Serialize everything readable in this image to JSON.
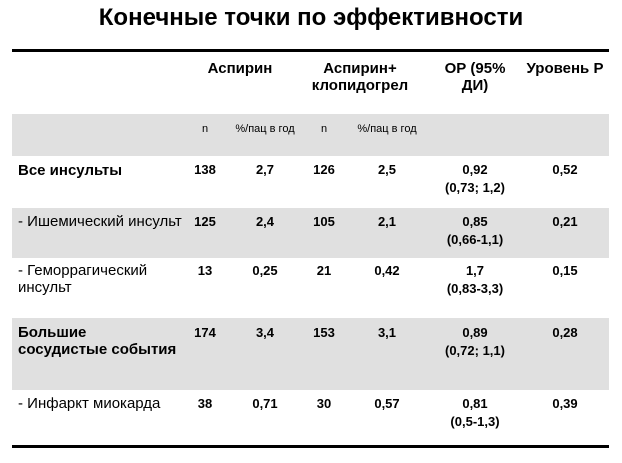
{
  "title": "Конечные точки по эффективности",
  "headers": {
    "aspirin": "Аспирин",
    "aspirin_clopidogrel": "Аспирин+ клопидогрел",
    "or": "ОР (95% ДИ)",
    "level_p": "Уровень Р"
  },
  "subheaders": {
    "n1": "n",
    "rate1": "%/пац в год",
    "n2": "n",
    "rate2": "%/пац в год"
  },
  "rows": [
    {
      "label": "Все инсульты",
      "n1": "138",
      "rate1": "2,7",
      "n2": "126",
      "rate2": "2,5",
      "or": "0,92",
      "ci": "(0,73; 1,2)",
      "p": "0,52"
    },
    {
      "label": "- Ишемический инсульт",
      "n1": "125",
      "rate1": "2,4",
      "n2": "105",
      "rate2": "2,1",
      "or": "0,85",
      "ci": "(0,66-1,1)",
      "p": "0,21"
    },
    {
      "label": "- Геморрагический инсульт",
      "n1": "13",
      "rate1": "0,25",
      "n2": "21",
      "rate2": "0,42",
      "or": "1,7",
      "ci": "(0,83-3,3)",
      "p": "0,15"
    },
    {
      "label": "Большие сосудистые события",
      "n1": "174",
      "rate1": "3,4",
      "n2": "153",
      "rate2": "3,1",
      "or": "0,89",
      "ci": "(0,72; 1,1)",
      "p": "0,28"
    },
    {
      "label": "- Инфаркт миокарда",
      "n1": "38",
      "rate1": "0,71",
      "n2": "30",
      "rate2": "0,57",
      "or": "0,81",
      "ci": "(0,5-1,3)",
      "p": "0,39"
    }
  ]
}
